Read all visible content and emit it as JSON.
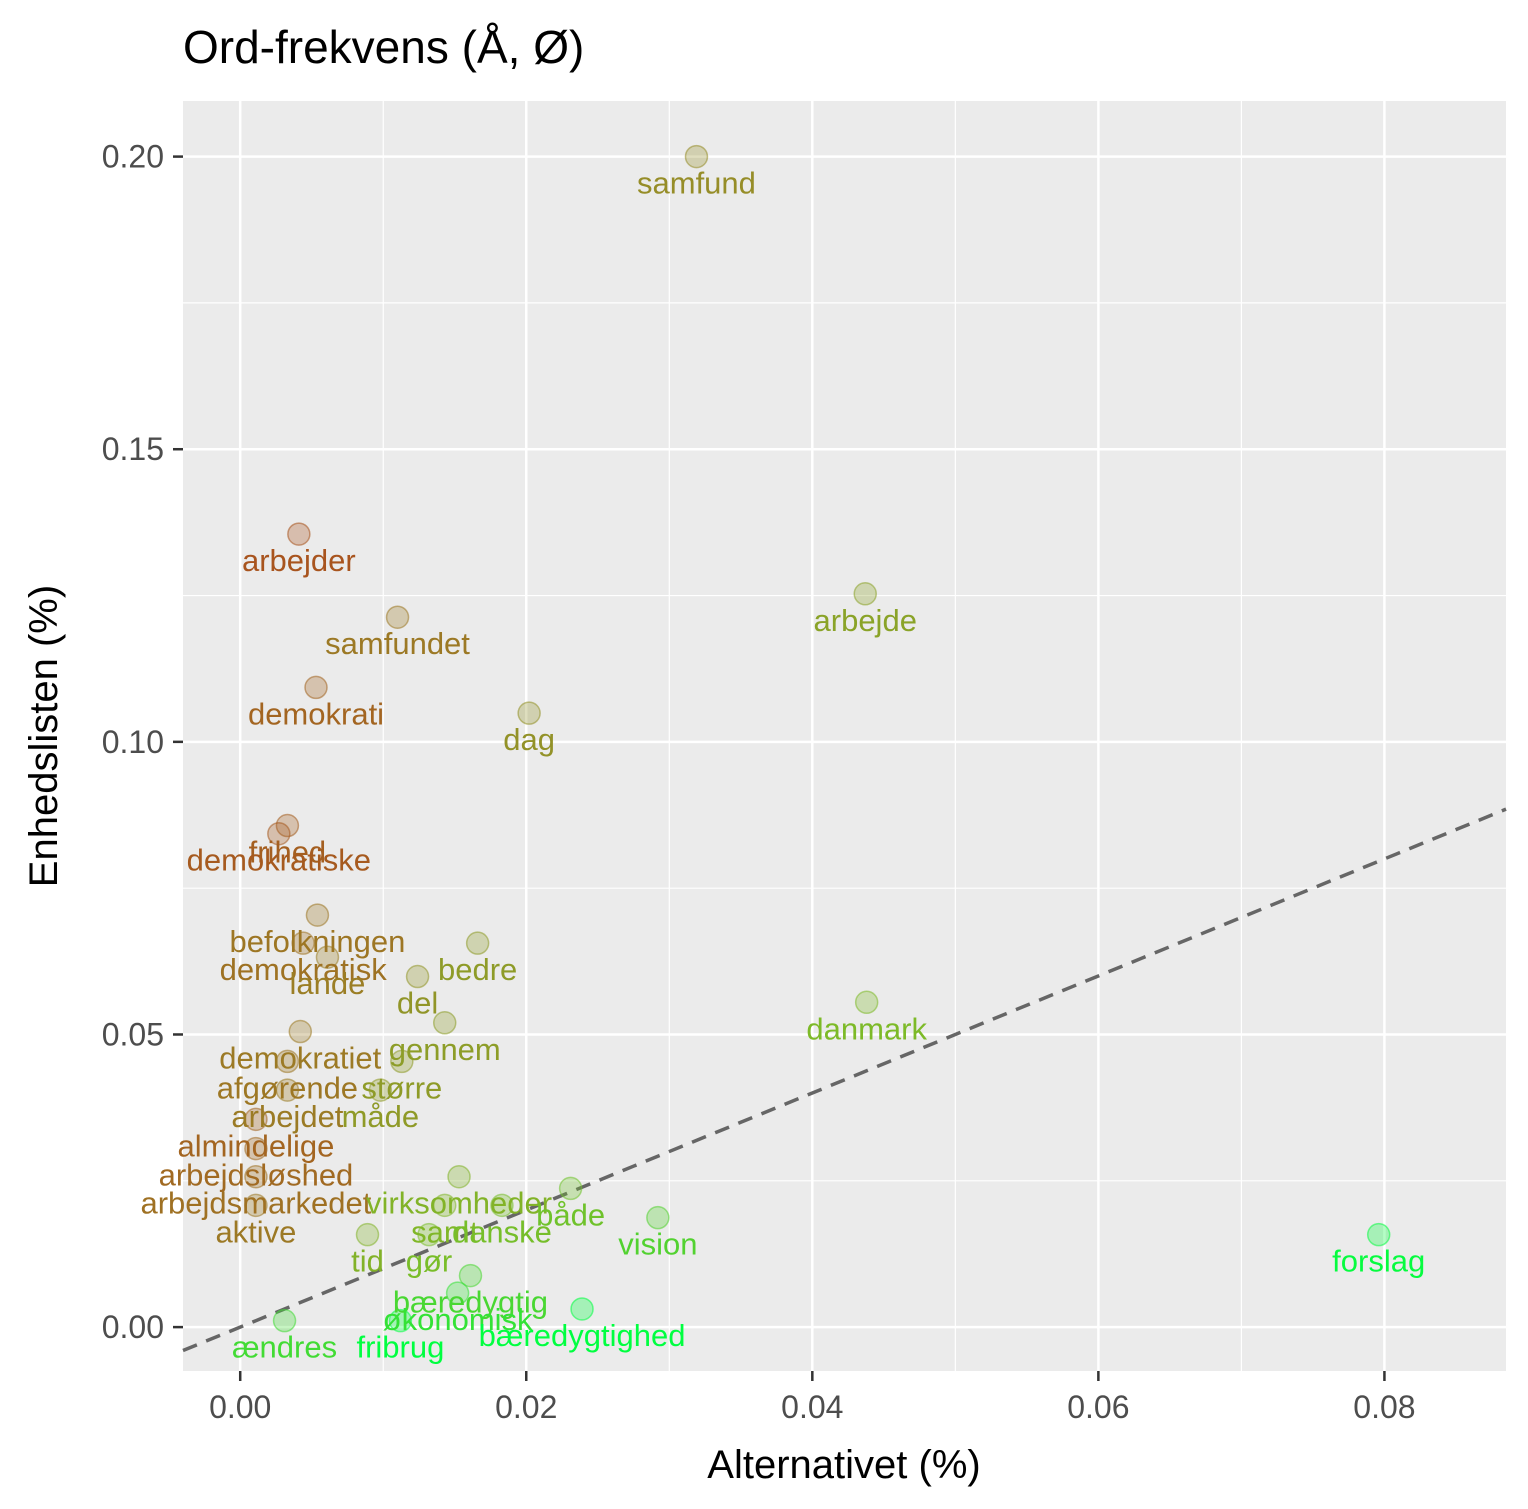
{
  "chart_data": {
    "type": "scatter",
    "title": "Ord-frekvens (Å, Ø)",
    "xlabel": "Alternativet (%)",
    "ylabel": "Enhedslisten (%)",
    "xlim": [
      -0.004,
      0.0885
    ],
    "ylim": [
      -0.0075,
      0.2095
    ],
    "x_ticks": [
      0.0,
      0.02,
      0.04,
      0.06,
      0.08
    ],
    "x_tick_labels": [
      "0.00",
      "0.02",
      "0.04",
      "0.06",
      "0.08"
    ],
    "y_ticks": [
      0.0,
      0.05,
      0.1,
      0.15,
      0.2
    ],
    "y_tick_labels": [
      "0.00",
      "0.05",
      "0.10",
      "0.15",
      "0.20"
    ],
    "grid": true,
    "background": "#ebebeb",
    "reference_line": {
      "type": "identity",
      "slope": 1,
      "intercept": 0,
      "style": "dashed",
      "color": "#666666"
    },
    "labeled_points": [
      {
        "label": "samfund",
        "x": 0.0319,
        "y": 0.2
      },
      {
        "label": "arbejder",
        "x": 0.0041,
        "y": 0.1355
      },
      {
        "label": "arbejde",
        "x": 0.0437,
        "y": 0.1253
      },
      {
        "label": "samfundet",
        "x": 0.011,
        "y": 0.1213
      },
      {
        "label": "demokrati",
        "x": 0.0053,
        "y": 0.1093
      },
      {
        "label": "dag",
        "x": 0.0202,
        "y": 0.1049
      },
      {
        "label": "frihed",
        "x": 0.0033,
        "y": 0.0857
      },
      {
        "label": "demokratiske",
        "x": 0.0027,
        "y": 0.0843
      },
      {
        "label": "befolkningen",
        "x": 0.0054,
        "y": 0.0704
      },
      {
        "label": "bedre",
        "x": 0.0166,
        "y": 0.0656
      },
      {
        "label": "demokratisk",
        "x": 0.0044,
        "y": 0.0656
      },
      {
        "label": "lande",
        "x": 0.0061,
        "y": 0.0632
      },
      {
        "label": "del",
        "x": 0.0124,
        "y": 0.0599
      },
      {
        "label": "gennem",
        "x": 0.0143,
        "y": 0.052
      },
      {
        "label": "danmark",
        "x": 0.0438,
        "y": 0.0555
      },
      {
        "label": "demokratiet",
        "x": 0.0042,
        "y": 0.0505
      },
      {
        "label": "afgørende",
        "x": 0.0033,
        "y": 0.0454
      },
      {
        "label": "større",
        "x": 0.0113,
        "y": 0.0454
      },
      {
        "label": "arbejdet",
        "x": 0.0033,
        "y": 0.0405
      },
      {
        "label": "måde",
        "x": 0.0098,
        "y": 0.0405
      },
      {
        "label": "almindelige",
        "x": 0.0011,
        "y": 0.0355
      },
      {
        "label": "arbejdsløshed",
        "x": 0.0011,
        "y": 0.0305
      },
      {
        "label": "arbejdsmarkedet",
        "x": 0.0011,
        "y": 0.0257
      },
      {
        "label": "virksomheder",
        "x": 0.0153,
        "y": 0.0257
      },
      {
        "label": "både",
        "x": 0.0231,
        "y": 0.0237
      },
      {
        "label": "aktive",
        "x": 0.0011,
        "y": 0.0208
      },
      {
        "label": "samt",
        "x": 0.0143,
        "y": 0.0208
      },
      {
        "label": "danske",
        "x": 0.0183,
        "y": 0.0208
      },
      {
        "label": "vision",
        "x": 0.0292,
        "y": 0.0187
      },
      {
        "label": "tid",
        "x": 0.0089,
        "y": 0.0158
      },
      {
        "label": "gør",
        "x": 0.0132,
        "y": 0.0158
      },
      {
        "label": "forslag",
        "x": 0.0796,
        "y": 0.0158
      },
      {
        "label": "bæredygtig",
        "x": 0.0161,
        "y": 0.0088
      },
      {
        "label": "økonomisk",
        "x": 0.0152,
        "y": 0.0058
      },
      {
        "label": "ændres",
        "x": 0.0031,
        "y": 0.0011
      },
      {
        "label": "fribrug",
        "x": 0.0112,
        "y": 0.0011
      },
      {
        "label": "bæredygtighed",
        "x": 0.0239,
        "y": 0.0031
      }
    ]
  }
}
